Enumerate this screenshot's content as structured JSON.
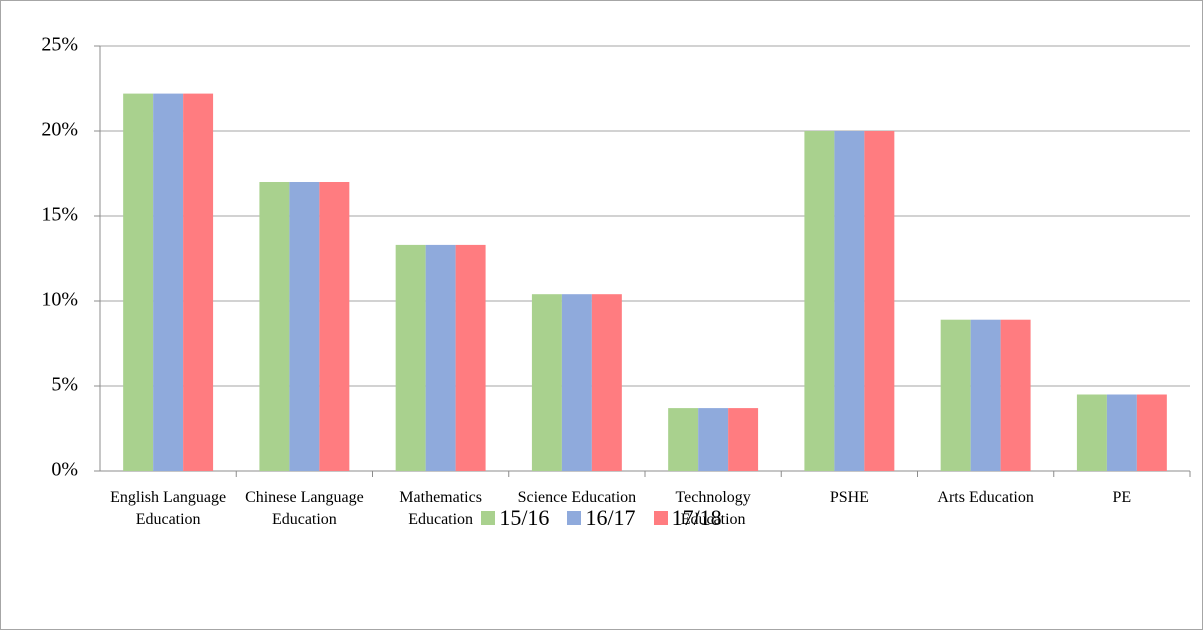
{
  "chart_data": {
    "type": "bar",
    "categories": [
      "English Language Education",
      "Chinese Language Education",
      "Mathematics Education",
      "Science Education",
      "Technology Education",
      "PSHE",
      "Arts Education",
      "PE"
    ],
    "series": [
      {
        "name": "15/16",
        "color": "#a9d18e",
        "values": [
          22.2,
          17.0,
          13.3,
          10.4,
          3.7,
          20.0,
          8.9,
          4.5
        ]
      },
      {
        "name": "16/17",
        "color": "#8faadc",
        "values": [
          22.2,
          17.0,
          13.3,
          10.4,
          3.7,
          20.0,
          8.9,
          4.5
        ]
      },
      {
        "name": "17/18",
        "color": "#ff7c80",
        "values": [
          22.2,
          17.0,
          13.3,
          10.4,
          3.7,
          20.0,
          8.9,
          4.5
        ]
      }
    ],
    "ylim": [
      0,
      25
    ],
    "yticks": [
      {
        "value": 0,
        "label": "0%"
      },
      {
        "value": 5,
        "label": "5%"
      },
      {
        "value": 10,
        "label": "10%"
      },
      {
        "value": 15,
        "label": "15%"
      },
      {
        "value": 20,
        "label": "20%"
      },
      {
        "value": 25,
        "label": "25%"
      }
    ],
    "grid": true,
    "legend": "bottom"
  }
}
